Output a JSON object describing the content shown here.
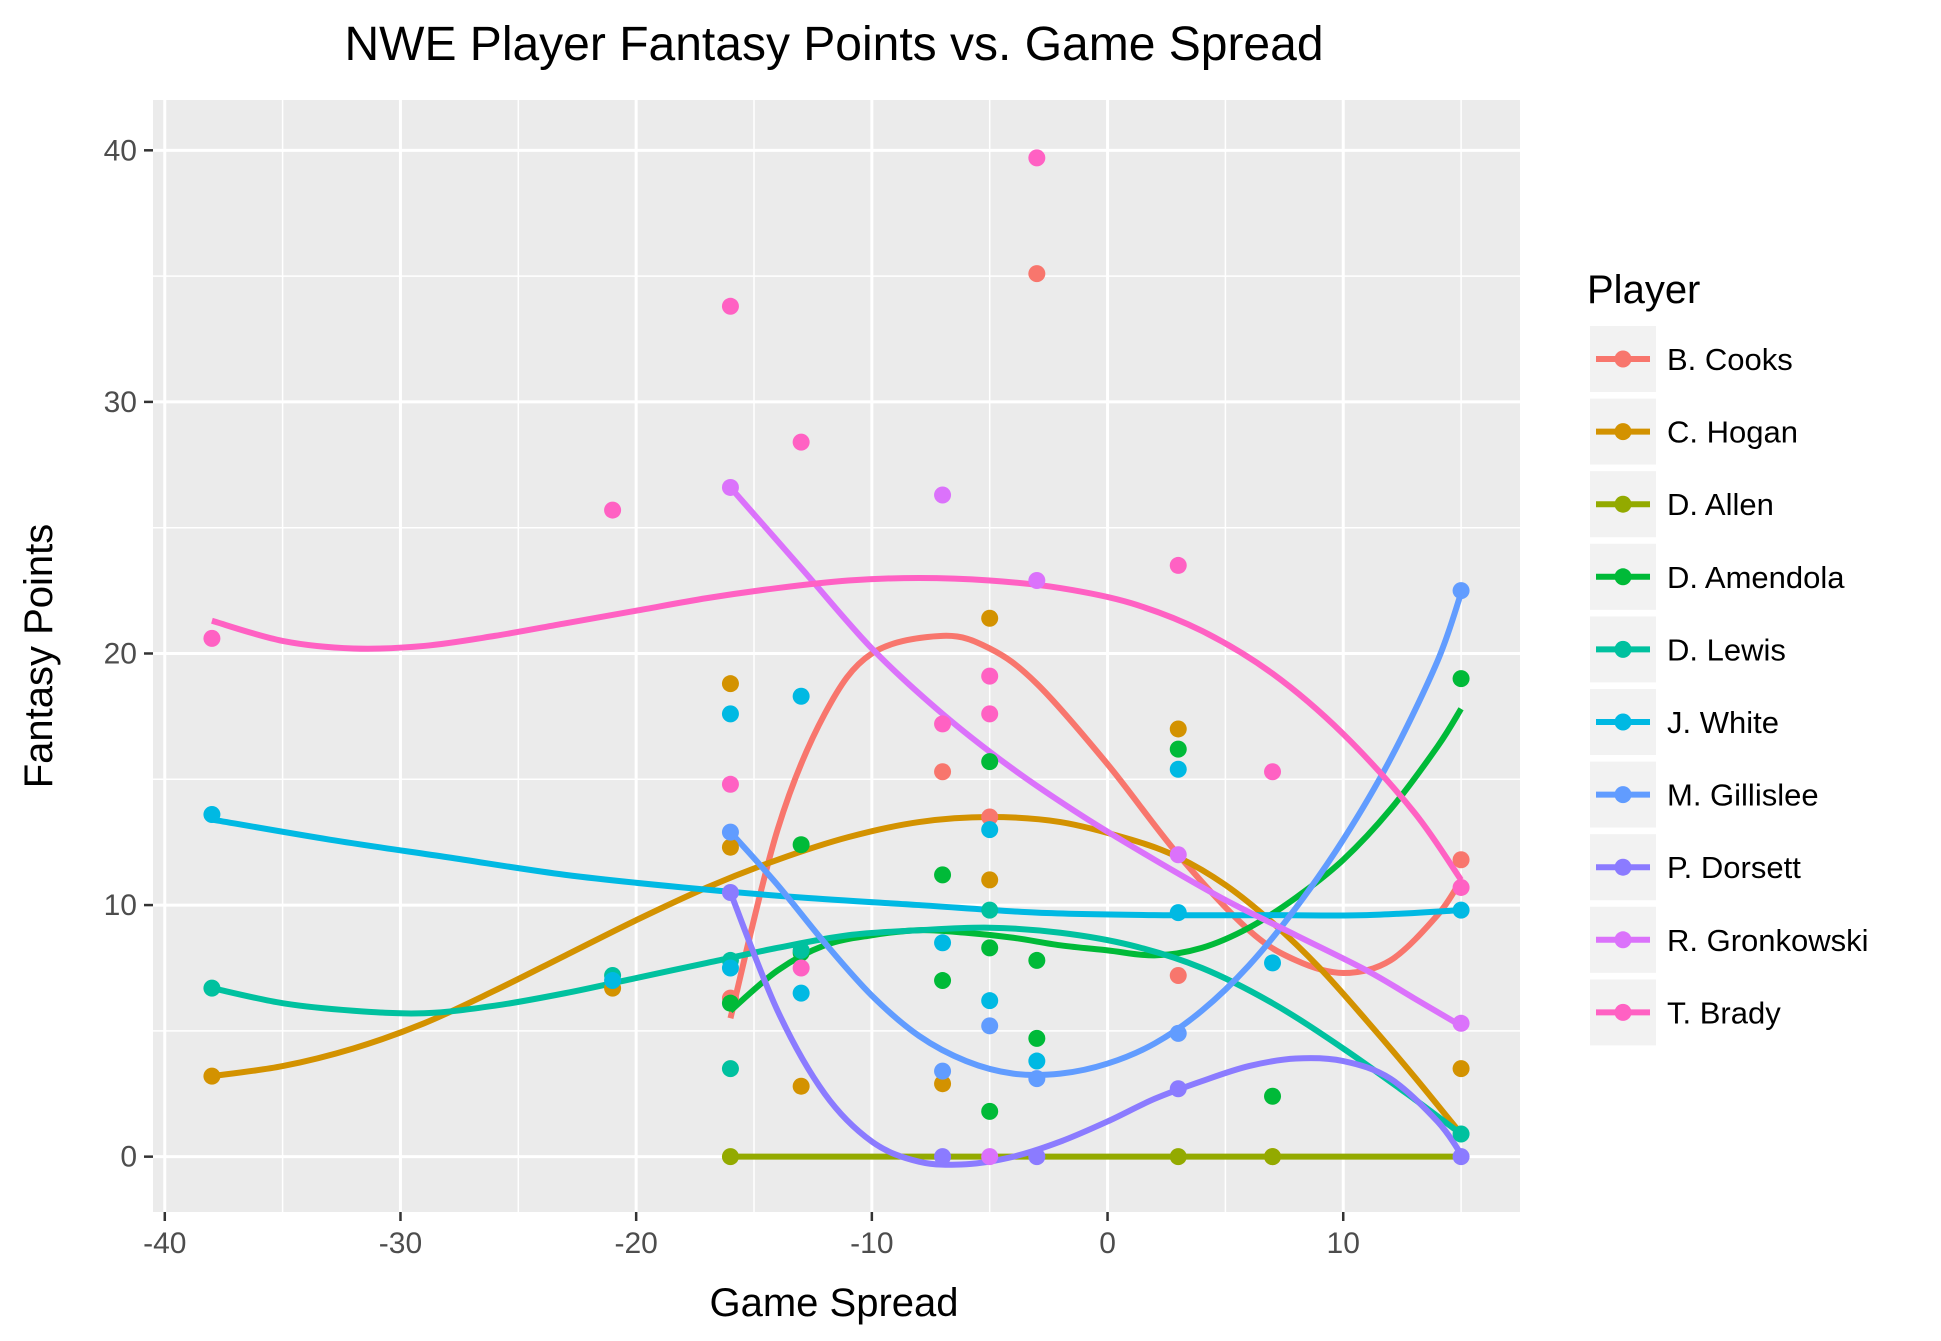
{
  "chart_data": {
    "type": "scatter",
    "title": "NWE Player Fantasy Points vs. Game Spread",
    "xlabel": "Game Spread",
    "ylabel": "Fantasy Points",
    "xlim": [
      -40.5,
      17.5
    ],
    "ylim": [
      -2.2,
      42.0
    ],
    "x_ticks": [
      -40,
      -30,
      -20,
      -10,
      0,
      10
    ],
    "y_ticks": [
      0,
      10,
      20,
      30,
      40
    ],
    "grid": true,
    "legend": {
      "title": "Player",
      "position": "right"
    },
    "series": [
      {
        "name": "B. Cooks",
        "color": "#F8766D",
        "points": [
          [
            -16,
            6.3
          ],
          [
            -7,
            15.3
          ],
          [
            -5,
            13.5
          ],
          [
            -3,
            35.1
          ],
          [
            3,
            7.2
          ],
          [
            15,
            11.8
          ]
        ],
        "smooth": [
          [
            -16,
            5.5
          ],
          [
            -14,
            13.0
          ],
          [
            -12,
            17.6
          ],
          [
            -10,
            20.0
          ],
          [
            -7,
            20.7
          ],
          [
            -5,
            20.2
          ],
          [
            -3,
            18.8
          ],
          [
            0,
            15.6
          ],
          [
            3,
            12.0
          ],
          [
            6,
            9.0
          ],
          [
            8,
            7.8
          ],
          [
            10,
            7.3
          ],
          [
            12,
            7.8
          ],
          [
            14,
            9.6
          ],
          [
            15,
            11.0
          ]
        ]
      },
      {
        "name": "C. Hogan",
        "color": "#D39200",
        "points": [
          [
            -38,
            3.2
          ],
          [
            -21,
            6.7
          ],
          [
            -16,
            18.8
          ],
          [
            -16,
            12.3
          ],
          [
            -13,
            2.8
          ],
          [
            -7,
            2.9
          ],
          [
            -5,
            21.4
          ],
          [
            -5,
            11.0
          ],
          [
            3,
            17.0
          ],
          [
            7,
            0.0
          ],
          [
            15,
            3.5
          ]
        ],
        "smooth": [
          [
            -38,
            3.2
          ],
          [
            -35,
            3.6
          ],
          [
            -32,
            4.3
          ],
          [
            -29,
            5.3
          ],
          [
            -26,
            6.6
          ],
          [
            -23,
            8.0
          ],
          [
            -20,
            9.4
          ],
          [
            -17,
            10.7
          ],
          [
            -14,
            11.8
          ],
          [
            -11,
            12.7
          ],
          [
            -8,
            13.3
          ],
          [
            -5,
            13.5
          ],
          [
            -2,
            13.3
          ],
          [
            1,
            12.6
          ],
          [
            3,
            11.9
          ],
          [
            5,
            10.8
          ],
          [
            7,
            9.3
          ],
          [
            9,
            7.5
          ],
          [
            11,
            5.4
          ],
          [
            13,
            3.2
          ],
          [
            15,
            0.9
          ]
        ]
      },
      {
        "name": "D. Allen",
        "color": "#93AA00",
        "points": [
          [
            -16,
            0.0
          ],
          [
            3,
            0.0
          ],
          [
            7,
            0.0
          ]
        ],
        "smooth": [
          [
            -16,
            0.0
          ],
          [
            15,
            0.0
          ]
        ]
      },
      {
        "name": "D. Amendola",
        "color": "#00BA38",
        "points": [
          [
            -16,
            6.1
          ],
          [
            -13,
            12.4
          ],
          [
            -13,
            8.1
          ],
          [
            -7,
            11.2
          ],
          [
            -7,
            7.0
          ],
          [
            -5,
            15.7
          ],
          [
            -5,
            8.3
          ],
          [
            -5,
            1.8
          ],
          [
            -3,
            7.8
          ],
          [
            -3,
            4.7
          ],
          [
            3,
            16.2
          ],
          [
            7,
            2.4
          ],
          [
            15,
            19.0
          ]
        ],
        "smooth": [
          [
            -16,
            5.8
          ],
          [
            -14,
            7.4
          ],
          [
            -12,
            8.4
          ],
          [
            -10,
            8.8
          ],
          [
            -8,
            9.0
          ],
          [
            -6,
            8.9
          ],
          [
            -4,
            8.7
          ],
          [
            -2,
            8.4
          ],
          [
            0,
            8.2
          ],
          [
            2,
            8.0
          ],
          [
            4,
            8.3
          ],
          [
            6,
            9.1
          ],
          [
            8,
            10.3
          ],
          [
            10,
            11.8
          ],
          [
            12,
            13.8
          ],
          [
            14,
            16.3
          ],
          [
            15,
            17.8
          ]
        ]
      },
      {
        "name": "D. Lewis",
        "color": "#00C19F",
        "points": [
          [
            -38,
            6.7
          ],
          [
            -21,
            7.2
          ],
          [
            -16,
            7.8
          ],
          [
            -16,
            3.5
          ],
          [
            -13,
            8.2
          ],
          [
            -5,
            9.8
          ],
          [
            15,
            0.9
          ]
        ],
        "smooth": [
          [
            -38,
            6.7
          ],
          [
            -35,
            6.1
          ],
          [
            -32,
            5.8
          ],
          [
            -29,
            5.7
          ],
          [
            -26,
            6.0
          ],
          [
            -23,
            6.5
          ],
          [
            -20,
            7.1
          ],
          [
            -17,
            7.7
          ],
          [
            -14,
            8.3
          ],
          [
            -11,
            8.8
          ],
          [
            -8,
            9.0
          ],
          [
            -5,
            9.1
          ],
          [
            -2,
            8.9
          ],
          [
            1,
            8.4
          ],
          [
            4,
            7.5
          ],
          [
            7,
            6.1
          ],
          [
            10,
            4.3
          ],
          [
            13,
            2.3
          ],
          [
            15,
            0.9
          ]
        ]
      },
      {
        "name": "J. White",
        "color": "#00B9E3",
        "points": [
          [
            -38,
            13.6
          ],
          [
            -21,
            7.0
          ],
          [
            -16,
            17.6
          ],
          [
            -16,
            7.5
          ],
          [
            -13,
            18.3
          ],
          [
            -13,
            6.5
          ],
          [
            -7,
            8.5
          ],
          [
            -5,
            13.0
          ],
          [
            -5,
            6.2
          ],
          [
            -3,
            3.8
          ],
          [
            3,
            15.4
          ],
          [
            3,
            9.7
          ],
          [
            7,
            7.7
          ],
          [
            15,
            9.8
          ]
        ],
        "smooth": [
          [
            -38,
            13.4
          ],
          [
            -33,
            12.6
          ],
          [
            -28,
            11.9
          ],
          [
            -23,
            11.2
          ],
          [
            -18,
            10.7
          ],
          [
            -13,
            10.3
          ],
          [
            -8,
            10.0
          ],
          [
            -3,
            9.7
          ],
          [
            2,
            9.6
          ],
          [
            7,
            9.6
          ],
          [
            11,
            9.6
          ],
          [
            15,
            9.8
          ]
        ]
      },
      {
        "name": "M. Gillislee",
        "color": "#619CFF",
        "points": [
          [
            -16,
            12.9
          ],
          [
            -7,
            3.4
          ],
          [
            -5,
            5.2
          ],
          [
            -3,
            3.1
          ],
          [
            3,
            4.9
          ],
          [
            15,
            22.5
          ]
        ],
        "smooth": [
          [
            -16,
            12.9
          ],
          [
            -14,
            10.8
          ],
          [
            -12,
            8.5
          ],
          [
            -10,
            6.4
          ],
          [
            -8,
            4.8
          ],
          [
            -6,
            3.8
          ],
          [
            -4,
            3.3
          ],
          [
            -2,
            3.3
          ],
          [
            0,
            3.7
          ],
          [
            2,
            4.5
          ],
          [
            4,
            5.8
          ],
          [
            6,
            7.6
          ],
          [
            8,
            9.9
          ],
          [
            10,
            12.6
          ],
          [
            12,
            15.8
          ],
          [
            14,
            19.7
          ],
          [
            15,
            22.4
          ]
        ]
      },
      {
        "name": "P. Dorsett",
        "color": "#8B7BFF",
        "points": [
          [
            -16,
            10.5
          ],
          [
            -7,
            0.0
          ],
          [
            -3,
            0.0
          ],
          [
            3,
            2.7
          ],
          [
            15,
            0.0
          ]
        ],
        "smooth": [
          [
            -16,
            10.5
          ],
          [
            -14,
            5.8
          ],
          [
            -12,
            2.5
          ],
          [
            -10,
            0.6
          ],
          [
            -8,
            -0.2
          ],
          [
            -6,
            -0.3
          ],
          [
            -4,
            0.0
          ],
          [
            -2,
            0.6
          ],
          [
            0,
            1.4
          ],
          [
            2,
            2.3
          ],
          [
            4,
            3.0
          ],
          [
            6,
            3.6
          ],
          [
            8,
            3.9
          ],
          [
            10,
            3.8
          ],
          [
            12,
            3.1
          ],
          [
            14,
            1.4
          ],
          [
            15,
            0.1
          ]
        ]
      },
      {
        "name": "R. Gronkowski",
        "color": "#DB72FB",
        "points": [
          [
            -16,
            26.6
          ],
          [
            -7,
            26.3
          ],
          [
            -5,
            0.0
          ],
          [
            -3,
            22.9
          ],
          [
            3,
            12.0
          ],
          [
            15,
            5.3
          ]
        ],
        "smooth": [
          [
            -16,
            26.6
          ],
          [
            -13,
            23.4
          ],
          [
            -10,
            20.2
          ],
          [
            -7,
            17.6
          ],
          [
            -4,
            15.4
          ],
          [
            -1,
            13.5
          ],
          [
            2,
            11.8
          ],
          [
            5,
            10.2
          ],
          [
            8,
            8.8
          ],
          [
            11,
            7.4
          ],
          [
            13,
            6.3
          ],
          [
            15,
            5.2
          ]
        ]
      },
      {
        "name": "T. Brady",
        "color": "#FF61C3",
        "points": [
          [
            -38,
            20.6
          ],
          [
            -21,
            25.7
          ],
          [
            -16,
            33.8
          ],
          [
            -16,
            14.8
          ],
          [
            -13,
            28.4
          ],
          [
            -13,
            7.5
          ],
          [
            -7,
            17.2
          ],
          [
            -5,
            19.1
          ],
          [
            -5,
            17.6
          ],
          [
            -3,
            39.7
          ],
          [
            3,
            23.5
          ],
          [
            7,
            15.3
          ],
          [
            15,
            10.7
          ]
        ],
        "smooth": [
          [
            -38,
            21.3
          ],
          [
            -35,
            20.5
          ],
          [
            -32,
            20.2
          ],
          [
            -29,
            20.3
          ],
          [
            -26,
            20.7
          ],
          [
            -23,
            21.2
          ],
          [
            -20,
            21.7
          ],
          [
            -17,
            22.2
          ],
          [
            -14,
            22.6
          ],
          [
            -11,
            22.9
          ],
          [
            -8,
            23.0
          ],
          [
            -5,
            22.9
          ],
          [
            -2,
            22.6
          ],
          [
            1,
            22.0
          ],
          [
            4,
            20.9
          ],
          [
            7,
            19.2
          ],
          [
            10,
            16.8
          ],
          [
            13,
            13.7
          ],
          [
            15,
            11.0
          ]
        ]
      }
    ]
  }
}
